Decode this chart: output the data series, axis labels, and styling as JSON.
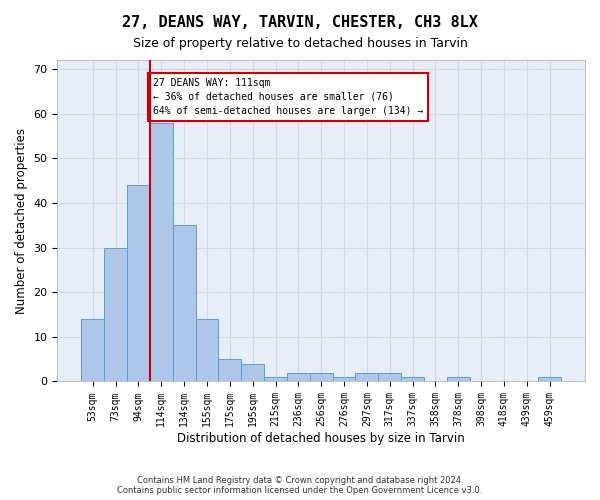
{
  "title": "27, DEANS WAY, TARVIN, CHESTER, CH3 8LX",
  "subtitle": "Size of property relative to detached houses in Tarvin",
  "xlabel": "Distribution of detached houses by size in Tarvin",
  "ylabel": "Number of detached properties",
  "bar_labels": [
    "53sqm",
    "73sqm",
    "94sqm",
    "114sqm",
    "134sqm",
    "155sqm",
    "175sqm",
    "195sqm",
    "215sqm",
    "236sqm",
    "256sqm",
    "276sqm",
    "297sqm",
    "317sqm",
    "337sqm",
    "358sqm",
    "378sqm",
    "398sqm",
    "418sqm",
    "439sqm",
    "459sqm"
  ],
  "bar_heights": [
    14,
    30,
    44,
    58,
    35,
    14,
    5,
    4,
    1,
    2,
    2,
    1,
    2,
    2,
    1,
    0,
    1,
    0,
    0,
    0,
    1
  ],
  "bar_color": "#aec6e8",
  "bar_edge_color": "#5a9fd4",
  "vline_x": 3,
  "annotation_text": "27 DEANS WAY: 111sqm\n← 36% of detached houses are smaller (76)\n64% of semi-detached houses are larger (134) →",
  "annotation_box_color": "#ffffff",
  "annotation_box_edge_color": "#cc0000",
  "vline_color": "#cc0000",
  "ylim": [
    0,
    72
  ],
  "yticks": [
    0,
    10,
    20,
    30,
    40,
    50,
    60,
    70
  ],
  "grid_color": "#d0d8e8",
  "bg_color": "#e8eef8",
  "footer": "Contains HM Land Registry data © Crown copyright and database right 2024.\nContains public sector information licensed under the Open Government Licence v3.0.",
  "title_fontsize": 11,
  "subtitle_fontsize": 9,
  "xlabel_fontsize": 8.5,
  "ylabel_fontsize": 8.5,
  "tick_fontsize": 7,
  "footer_fontsize": 6
}
